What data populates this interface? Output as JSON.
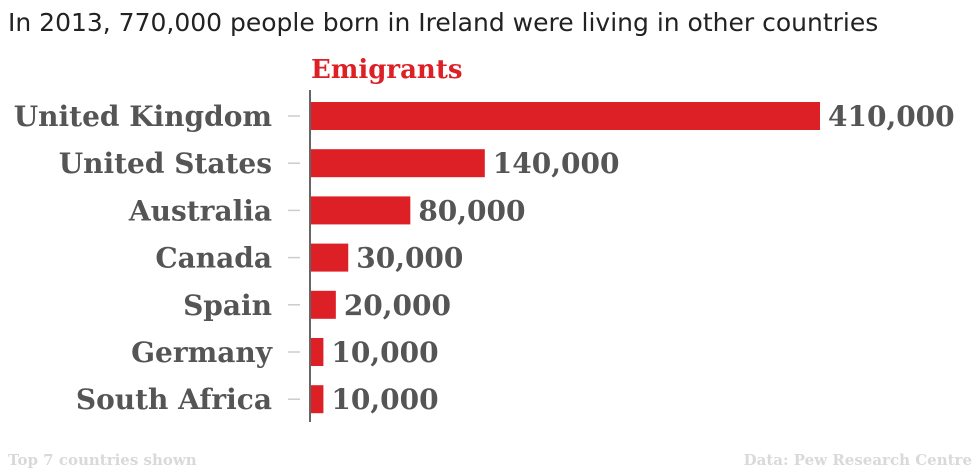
{
  "title": "In 2013, 770,000 people born in Ireland were living in other countries",
  "footer": {
    "note": "Top 7 countries shown",
    "source": "Data: Pew Research Centre"
  },
  "chart_data": {
    "type": "bar",
    "orientation": "horizontal",
    "categories": [
      "United Kingdom",
      "United States",
      "Australia",
      "Canada",
      "Spain",
      "Germany",
      "South Africa"
    ],
    "series": [
      {
        "name": "Emigrants",
        "values": [
          410000,
          140000,
          80000,
          30000,
          20000,
          10000,
          10000
        ],
        "labels": [
          "410,000",
          "140,000",
          "80,000",
          "30,000",
          "20,000",
          "10,000",
          "10,000"
        ]
      }
    ],
    "xlim": [
      0,
      410000
    ],
    "grid": false,
    "bar_color": "#dd1f26",
    "label_color": "#555555"
  }
}
